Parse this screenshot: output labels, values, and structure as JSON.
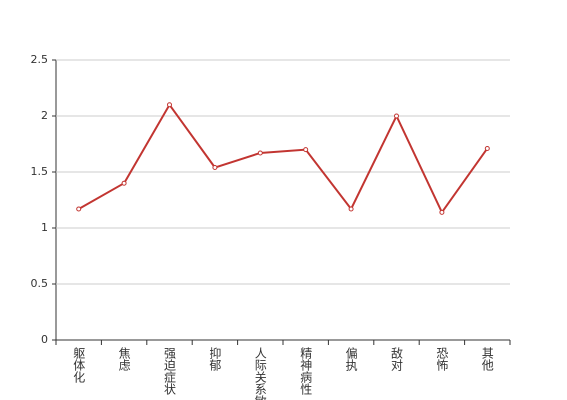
{
  "chart_data": {
    "type": "line",
    "categories": [
      "躯体化",
      "焦虑",
      "强迫症状",
      "抑郁",
      "人际关系敏感",
      "精神病性",
      "偏执",
      "敌对",
      "恐怖",
      "其他"
    ],
    "values": [
      1.17,
      1.4,
      2.1,
      1.54,
      1.67,
      1.7,
      1.17,
      2.0,
      1.14,
      1.71
    ],
    "color": "#c23531",
    "ylim": [
      0,
      2.5
    ],
    "yticks": [
      0,
      0.5,
      1,
      1.5,
      2,
      2.5
    ],
    "grid": true
  }
}
